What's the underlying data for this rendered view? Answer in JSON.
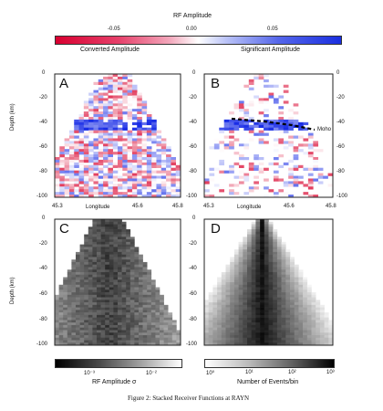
{
  "top_colorbar": {
    "title": "RF Amplitude",
    "ticks": [
      "-0.05",
      "0.00",
      "0.05"
    ],
    "left_label": "Converted Amplitude",
    "right_label": "Significant Amplitude",
    "colors": {
      "negative": "#e0103c",
      "zero": "#ffffff",
      "positive": "#1a2fe0"
    }
  },
  "axes": {
    "depth_label": "Depth (km)",
    "depth_ticks": [
      "0",
      "-20",
      "-40",
      "-60",
      "-80",
      "-100"
    ],
    "longitude_label": "Longitude",
    "longitude_ticks": [
      "45.3",
      "45.6",
      "45.8"
    ]
  },
  "panels": [
    {
      "letter": "A",
      "kind": "rf"
    },
    {
      "letter": "B",
      "kind": "rf_significant",
      "annotation": "Moho"
    },
    {
      "letter": "C",
      "kind": "gray_sigma"
    },
    {
      "letter": "D",
      "kind": "gray_counts"
    }
  ],
  "bottom_colorbars": [
    {
      "label": "RF Amplitude σ",
      "ticks": [
        "10⁻³",
        "10⁻²"
      ]
    },
    {
      "label": "Number of Events/bin",
      "ticks": [
        "10⁰",
        "10¹",
        "10²",
        "10³"
      ]
    }
  ],
  "caption": "Figure 2: Stacked Receiver Functions at RAYN"
}
